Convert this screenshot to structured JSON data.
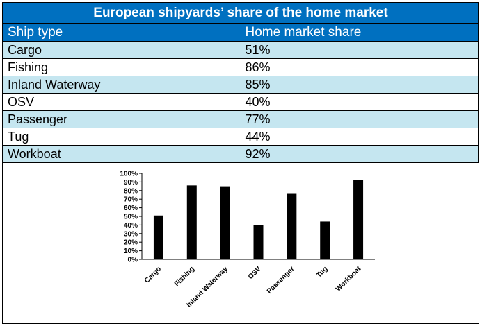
{
  "table": {
    "title": "European shipyards’ share of the home market",
    "headers": [
      "Ship type",
      "Home market share"
    ],
    "rows": [
      {
        "type": "Cargo",
        "share": "51%"
      },
      {
        "type": "Fishing",
        "share": "86%"
      },
      {
        "type": "Inland Waterway",
        "share": "85%"
      },
      {
        "type": "OSV",
        "share": "40%"
      },
      {
        "type": "Passenger",
        "share": "77%"
      },
      {
        "type": "Tug",
        "share": "44%"
      },
      {
        "type": "Workboat",
        "share": "92%"
      }
    ],
    "colors": {
      "header_bg": "#0070c0",
      "header_text": "#ffffff",
      "stripe": "#c5e6f0"
    }
  },
  "chart_data": {
    "type": "bar",
    "categories": [
      "Cargo",
      "Fishing",
      "Inland Waterway",
      "OSV",
      "Passenger",
      "Tug",
      "Workboat"
    ],
    "values": [
      51,
      86,
      85,
      40,
      77,
      44,
      92
    ],
    "title": "",
    "xlabel": "",
    "ylabel": "",
    "ylim": [
      0,
      100
    ],
    "yticks": [
      "0%",
      "10%",
      "20%",
      "30%",
      "40%",
      "50%",
      "60%",
      "70%",
      "80%",
      "90%",
      "100%"
    ],
    "grid": false,
    "legend": "none",
    "bar_color": "#000000"
  }
}
